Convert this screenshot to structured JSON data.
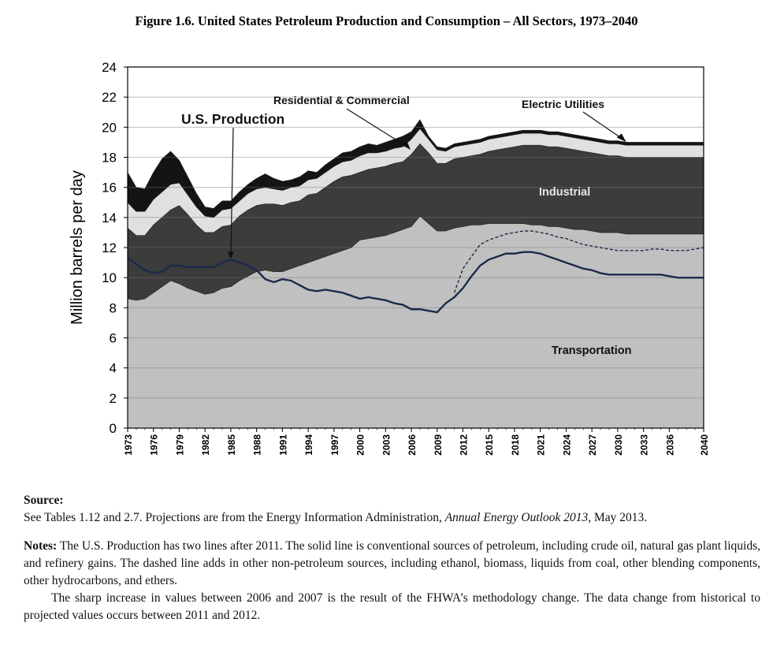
{
  "figure_title": "Figure 1.6.  United States Petroleum Production and Consumption – All Sectors, 1973–2040",
  "chart_data": {
    "type": "area",
    "title": "Figure 1.6.  United States Petroleum Production and Consumption – All Sectors, 1973–2040",
    "ylabel": "Million barrels per day",
    "xlabel": "",
    "xlim": [
      1973,
      2040
    ],
    "ylim": [
      0,
      24
    ],
    "yticks": [
      "0",
      "2",
      "4",
      "6",
      "8",
      "10",
      "12",
      "14",
      "16",
      "18",
      "20",
      "22",
      "24"
    ],
    "xticks": [
      "1973",
      "1976",
      "1979",
      "1982",
      "1985",
      "1988",
      "1991",
      "1994",
      "1997",
      "2000",
      "2003",
      "2006",
      "2009",
      "2012",
      "2015",
      "2018",
      "2021",
      "2024",
      "2027",
      "2030",
      "2033",
      "2036",
      "2040"
    ],
    "grid": "horizontal",
    "x": [
      1973,
      1974,
      1975,
      1976,
      1977,
      1978,
      1979,
      1980,
      1981,
      1982,
      1983,
      1984,
      1985,
      1986,
      1987,
      1988,
      1989,
      1990,
      1991,
      1992,
      1993,
      1994,
      1995,
      1996,
      1997,
      1998,
      1999,
      2000,
      2001,
      2002,
      2003,
      2004,
      2005,
      2006,
      2007,
      2008,
      2009,
      2010,
      2011,
      2012,
      2013,
      2014,
      2015,
      2016,
      2017,
      2018,
      2019,
      2020,
      2021,
      2022,
      2023,
      2024,
      2025,
      2026,
      2027,
      2028,
      2029,
      2030,
      2031,
      2032,
      2033,
      2034,
      2035,
      2036,
      2037,
      2038,
      2039,
      2040
    ],
    "series": [
      {
        "name": "Transportation",
        "color": "#c0c0c0",
        "values": [
          8.6,
          8.5,
          8.6,
          9.0,
          9.4,
          9.8,
          9.6,
          9.3,
          9.1,
          8.9,
          9.0,
          9.3,
          9.4,
          9.8,
          10.1,
          10.4,
          10.5,
          10.4,
          10.4,
          10.6,
          10.8,
          11.0,
          11.2,
          11.4,
          11.6,
          11.8,
          12.0,
          12.5,
          12.6,
          12.7,
          12.8,
          13.0,
          13.2,
          13.4,
          14.1,
          13.6,
          13.1,
          13.1,
          13.3,
          13.4,
          13.5,
          13.5,
          13.6,
          13.6,
          13.6,
          13.6,
          13.6,
          13.5,
          13.5,
          13.4,
          13.4,
          13.3,
          13.2,
          13.2,
          13.1,
          13.0,
          13.0,
          13.0,
          12.9,
          12.9,
          12.9,
          12.9,
          12.9,
          12.9,
          12.9,
          12.9,
          12.9,
          12.9
        ]
      },
      {
        "name": "Industrial",
        "color": "#3c3c3c",
        "values": [
          4.7,
          4.3,
          4.2,
          4.5,
          4.6,
          4.7,
          5.2,
          4.9,
          4.4,
          4.1,
          4.0,
          4.1,
          4.1,
          4.3,
          4.4,
          4.4,
          4.4,
          4.5,
          4.4,
          4.4,
          4.3,
          4.5,
          4.4,
          4.6,
          4.8,
          4.9,
          4.8,
          4.5,
          4.6,
          4.6,
          4.6,
          4.6,
          4.5,
          4.8,
          4.8,
          4.7,
          4.5,
          4.5,
          4.6,
          4.6,
          4.6,
          4.7,
          4.8,
          4.9,
          5.0,
          5.1,
          5.2,
          5.3,
          5.3,
          5.3,
          5.3,
          5.3,
          5.3,
          5.2,
          5.2,
          5.2,
          5.1,
          5.1,
          5.1,
          5.1,
          5.1,
          5.1,
          5.1,
          5.1,
          5.1,
          5.1,
          5.1,
          5.1
        ]
      },
      {
        "name": "Residential & Commercial",
        "color": "#e0e0e0",
        "values": [
          1.7,
          1.6,
          1.6,
          1.7,
          1.7,
          1.7,
          1.5,
          1.3,
          1.2,
          1.1,
          1.0,
          1.1,
          1.1,
          1.0,
          1.1,
          1.1,
          1.1,
          1.0,
          1.0,
          1.0,
          1.0,
          1.0,
          1.0,
          1.0,
          1.0,
          1.0,
          1.0,
          1.1,
          1.1,
          1.0,
          1.0,
          1.0,
          1.0,
          1.0,
          1.0,
          0.9,
          0.9,
          0.8,
          0.8,
          0.8,
          0.8,
          0.8,
          0.8,
          0.8,
          0.8,
          0.8,
          0.8,
          0.8,
          0.8,
          0.8,
          0.8,
          0.8,
          0.8,
          0.8,
          0.8,
          0.8,
          0.8,
          0.8,
          0.8,
          0.8,
          0.8,
          0.8,
          0.8,
          0.8,
          0.8,
          0.8,
          0.8,
          0.8
        ]
      },
      {
        "name": "Electric Utilities",
        "color": "#141414",
        "values": [
          2.0,
          1.6,
          1.5,
          1.8,
          2.2,
          2.2,
          1.5,
          1.2,
          0.9,
          0.6,
          0.6,
          0.6,
          0.5,
          0.6,
          0.6,
          0.7,
          0.9,
          0.7,
          0.6,
          0.5,
          0.6,
          0.6,
          0.4,
          0.5,
          0.5,
          0.6,
          0.6,
          0.6,
          0.6,
          0.5,
          0.6,
          0.6,
          0.7,
          0.5,
          0.6,
          0.2,
          0.2,
          0.2,
          0.2,
          0.2,
          0.2,
          0.2,
          0.2,
          0.2,
          0.2,
          0.2,
          0.2,
          0.2,
          0.2,
          0.2,
          0.2,
          0.2,
          0.2,
          0.2,
          0.2,
          0.2,
          0.2,
          0.2,
          0.2,
          0.2,
          0.2,
          0.2,
          0.2,
          0.2,
          0.2,
          0.2,
          0.2,
          0.2
        ]
      }
    ],
    "lines": [
      {
        "name": "U.S. Production",
        "style": "solid",
        "color": "#1b2a4a",
        "x": [
          1973,
          1974,
          1975,
          1976,
          1977,
          1978,
          1979,
          1980,
          1981,
          1982,
          1983,
          1984,
          1985,
          1986,
          1987,
          1988,
          1989,
          1990,
          1991,
          1992,
          1993,
          1994,
          1995,
          1996,
          1997,
          1998,
          1999,
          2000,
          2001,
          2002,
          2003,
          2004,
          2005,
          2006,
          2007,
          2008,
          2009,
          2010,
          2011,
          2012,
          2013,
          2014,
          2015,
          2016,
          2017,
          2018,
          2019,
          2020,
          2021,
          2022,
          2023,
          2024,
          2025,
          2026,
          2027,
          2028,
          2029,
          2030,
          2031,
          2032,
          2033,
          2034,
          2035,
          2036,
          2037,
          2038,
          2039,
          2040
        ],
        "values": [
          11.3,
          10.9,
          10.5,
          10.3,
          10.4,
          10.8,
          10.8,
          10.7,
          10.7,
          10.7,
          10.7,
          11.0,
          11.2,
          11.0,
          10.8,
          10.5,
          9.9,
          9.7,
          9.9,
          9.8,
          9.5,
          9.2,
          9.1,
          9.2,
          9.1,
          9.0,
          8.8,
          8.6,
          8.7,
          8.6,
          8.5,
          8.3,
          8.2,
          7.9,
          7.9,
          7.8,
          7.7,
          8.3,
          8.7,
          9.3,
          10.1,
          10.8,
          11.2,
          11.4,
          11.6,
          11.6,
          11.7,
          11.7,
          11.6,
          11.4,
          11.2,
          11.0,
          10.8,
          10.6,
          10.5,
          10.3,
          10.2,
          10.2,
          10.2,
          10.2,
          10.2,
          10.2,
          10.2,
          10.1,
          10.0,
          10.0,
          10.0,
          10.0
        ]
      },
      {
        "name": "U.S. Production (incl. other sources)",
        "style": "dashed",
        "color": "#1b2a4a",
        "x": [
          2011,
          2012,
          2013,
          2014,
          2015,
          2016,
          2017,
          2018,
          2019,
          2020,
          2021,
          2022,
          2023,
          2024,
          2025,
          2026,
          2027,
          2028,
          2029,
          2030,
          2031,
          2032,
          2033,
          2034,
          2035,
          2036,
          2037,
          2038,
          2039,
          2040
        ],
        "values": [
          9.0,
          10.6,
          11.4,
          12.2,
          12.5,
          12.7,
          12.9,
          13.0,
          13.1,
          13.1,
          13.0,
          12.9,
          12.7,
          12.6,
          12.4,
          12.2,
          12.1,
          12.0,
          11.9,
          11.8,
          11.8,
          11.8,
          11.8,
          11.9,
          11.9,
          11.8,
          11.8,
          11.8,
          11.9,
          12.0
        ]
      }
    ],
    "annotations": [
      {
        "text": "U.S. Production",
        "target": [
          1985,
          11.2
        ]
      },
      {
        "text": "Residential & Commercial",
        "target": [
          2006,
          18.5
        ]
      },
      {
        "text": "Electric Utilities",
        "target": [
          2031,
          19.0
        ]
      },
      {
        "text": "Industrial",
        "target": null
      },
      {
        "text": "Transportation",
        "target": null
      }
    ]
  },
  "notes": {
    "source_heading": "Source:",
    "source_text_1": "See Tables 1.12 and 2.7.  Projections are from the Energy Information Administration, ",
    "source_italic": "Annual Energy Outlook 2013",
    "source_text_2": ", May 2013.",
    "notes_heading": "Notes:",
    "notes_text": " The U.S. Production has two lines after 2011. The solid line is conventional sources of petroleum, including crude oil, natural gas plant liquids, and refinery gains. The dashed line adds in other non-petroleum sources, including ethanol, biomass, liquids from coal, other blending components, other hydrocarbons, and ethers.",
    "paragraph_2": "The sharp increase in values between 2006 and 2007 is the result of the FHWA’s methodology change.  The data change from historical to projected values occurs between 2011 and 2012."
  }
}
